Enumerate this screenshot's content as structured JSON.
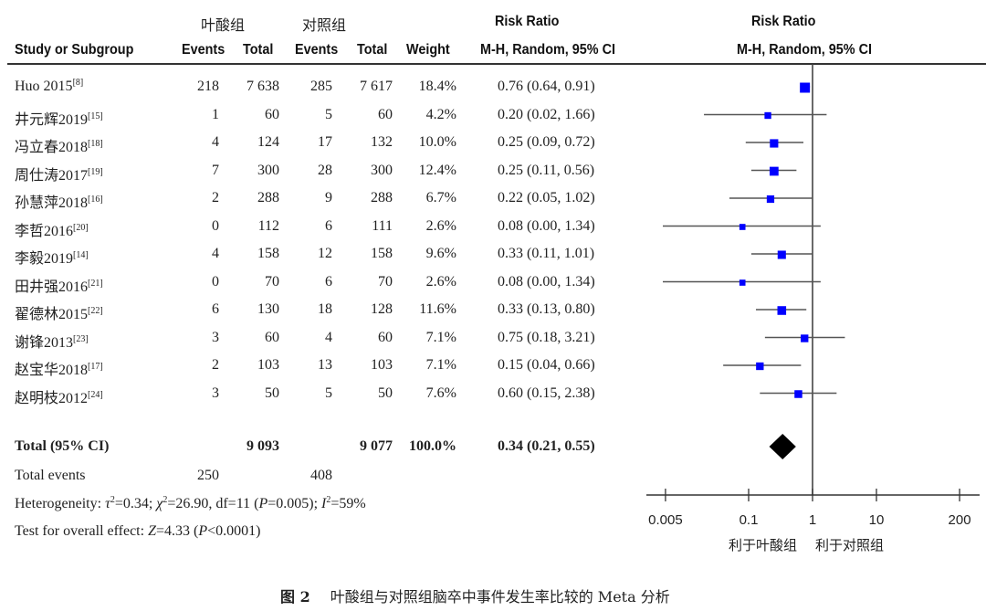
{
  "headers": {
    "group_exp": "叶酸组",
    "group_ctrl": "对照组",
    "study": "Study or Subgroup",
    "events_exp": "Events",
    "total_exp": "Total",
    "events_ctrl": "Events",
    "total_ctrl": "Total",
    "weight": "Weight",
    "rr_title": "Risk Ratio",
    "rr_method": "M-H, Random, 95% CI",
    "plot_title": "Risk Ratio",
    "plot_method": "M-H, Random, 95% CI"
  },
  "studies": [
    {
      "name": "Huo 2015",
      "ref": "[8]",
      "events_exp": "218",
      "total_exp": "7 638",
      "events_ctrl": "285",
      "total_ctrl": "7 617",
      "weight": "18.4%",
      "ci_text": "0.76 (0.64, 0.91)"
    },
    {
      "name": "井元辉2019",
      "ref": "[15]",
      "events_exp": "1",
      "total_exp": "60",
      "events_ctrl": "5",
      "total_ctrl": "60",
      "weight": "4.2%",
      "ci_text": "0.20 (0.02, 1.66)"
    },
    {
      "name": "冯立春2018",
      "ref": "[18]",
      "events_exp": "4",
      "total_exp": "124",
      "events_ctrl": "17",
      "total_ctrl": "132",
      "weight": "10.0%",
      "ci_text": "0.25 (0.09, 0.72)"
    },
    {
      "name": "周仕涛2017",
      "ref": "[19]",
      "events_exp": "7",
      "total_exp": "300",
      "events_ctrl": "28",
      "total_ctrl": "300",
      "weight": "12.4%",
      "ci_text": "0.25 (0.11, 0.56)"
    },
    {
      "name": "孙慧萍2018",
      "ref": "[16]",
      "events_exp": "2",
      "total_exp": "288",
      "events_ctrl": "9",
      "total_ctrl": "288",
      "weight": "6.7%",
      "ci_text": "0.22 (0.05, 1.02)"
    },
    {
      "name": "李哲2016",
      "ref": "[20]",
      "events_exp": "0",
      "total_exp": "112",
      "events_ctrl": "6",
      "total_ctrl": "111",
      "weight": "2.6%",
      "ci_text": "0.08 (0.00, 1.34)"
    },
    {
      "name": "李毅2019",
      "ref": "[14]",
      "events_exp": "4",
      "total_exp": "158",
      "events_ctrl": "12",
      "total_ctrl": "158",
      "weight": "9.6%",
      "ci_text": "0.33 (0.11, 1.01)"
    },
    {
      "name": "田井强2016",
      "ref": "[21]",
      "events_exp": "0",
      "total_exp": "70",
      "events_ctrl": "6",
      "total_ctrl": "70",
      "weight": "2.6%",
      "ci_text": "0.08 (0.00, 1.34)"
    },
    {
      "name": "翟德林2015",
      "ref": "[22]",
      "events_exp": "6",
      "total_exp": "130",
      "events_ctrl": "18",
      "total_ctrl": "128",
      "weight": "11.6%",
      "ci_text": "0.33 (0.13, 0.80)"
    },
    {
      "name": "谢锋2013",
      "ref": "[23]",
      "events_exp": "3",
      "total_exp": "60",
      "events_ctrl": "4",
      "total_ctrl": "60",
      "weight": "7.1%",
      "ci_text": "0.75 (0.18, 3.21)"
    },
    {
      "name": "赵宝华2018",
      "ref": "[17]",
      "events_exp": "2",
      "total_exp": "103",
      "events_ctrl": "13",
      "total_ctrl": "103",
      "weight": "7.1%",
      "ci_text": "0.15 (0.04, 0.66)"
    },
    {
      "name": "赵明枝2012",
      "ref": "[24]",
      "events_exp": "3",
      "total_exp": "50",
      "events_ctrl": "5",
      "total_ctrl": "50",
      "weight": "7.6%",
      "ci_text": "0.60 (0.15, 2.38)"
    }
  ],
  "total": {
    "label": "Total (95% CI)",
    "total_exp": "9 093",
    "total_ctrl": "9 077",
    "weight": "100.0%",
    "ci_text": "0.34 (0.21, 0.55)"
  },
  "total_events": {
    "label": "Total events",
    "exp": "250",
    "ctrl": "408"
  },
  "heterogeneity": {
    "prefix": "Heterogeneity: ",
    "tau_sym": "τ",
    "tau_val": "=0.34; ",
    "chi_sym": "χ",
    "chi_val": "=26.90, df=11 (",
    "p_sym": "P",
    "p_val": "=0.005); ",
    "i_sym": "I",
    "i_val": "=59%",
    "sq": "2"
  },
  "overall_effect": {
    "prefix": "Test for overall effect: ",
    "z_sym": "Z",
    "z_val": "=4.33 (",
    "p_sym": "P",
    "p_val": "<0.0001)"
  },
  "caption": {
    "fig": "图 2",
    "text": "叶酸组与对照组脑卒中事件发生率比较的 Meta 分析"
  },
  "colors": {
    "marker": "#0000ff",
    "line": "#555555",
    "diamond": "#000000",
    "text": "#222222"
  },
  "chart_data": {
    "type": "forest",
    "title": "Risk Ratio",
    "subtitle": "M-H, Random, 95% CI",
    "x_scale": "log",
    "xlim": [
      0.005,
      200
    ],
    "xticks": [
      0.005,
      0.1,
      1,
      10,
      200
    ],
    "xtick_labels": [
      "0.005",
      "0.1",
      "1",
      "10",
      "200"
    ],
    "null_value": 1,
    "xlabel_left": "利于叶酸组",
    "xlabel_right": "利于对照组",
    "points": [
      {
        "study": "Huo 2015",
        "rr": 0.76,
        "lo": 0.64,
        "hi": 0.91,
        "weight": 18.4
      },
      {
        "study": "井元辉2019",
        "rr": 0.2,
        "lo": 0.02,
        "hi": 1.66,
        "weight": 4.2
      },
      {
        "study": "冯立春2018",
        "rr": 0.25,
        "lo": 0.09,
        "hi": 0.72,
        "weight": 10.0
      },
      {
        "study": "周仕涛2017",
        "rr": 0.25,
        "lo": 0.11,
        "hi": 0.56,
        "weight": 12.4
      },
      {
        "study": "孙慧萍2018",
        "rr": 0.22,
        "lo": 0.05,
        "hi": 1.02,
        "weight": 6.7
      },
      {
        "study": "李哲2016",
        "rr": 0.08,
        "lo": 0.0,
        "hi": 1.34,
        "weight": 2.6
      },
      {
        "study": "李毅2019",
        "rr": 0.33,
        "lo": 0.11,
        "hi": 1.01,
        "weight": 9.6
      },
      {
        "study": "田井强2016",
        "rr": 0.08,
        "lo": 0.0,
        "hi": 1.34,
        "weight": 2.6
      },
      {
        "study": "翟德林2015",
        "rr": 0.33,
        "lo": 0.13,
        "hi": 0.8,
        "weight": 11.6
      },
      {
        "study": "谢锋2013",
        "rr": 0.75,
        "lo": 0.18,
        "hi": 3.21,
        "weight": 7.1
      },
      {
        "study": "赵宝华2018",
        "rr": 0.15,
        "lo": 0.04,
        "hi": 0.66,
        "weight": 7.1
      },
      {
        "study": "赵明枝2012",
        "rr": 0.6,
        "lo": 0.15,
        "hi": 2.38,
        "weight": 7.6
      }
    ],
    "pooled": {
      "rr": 0.34,
      "lo": 0.21,
      "hi": 0.55
    }
  }
}
